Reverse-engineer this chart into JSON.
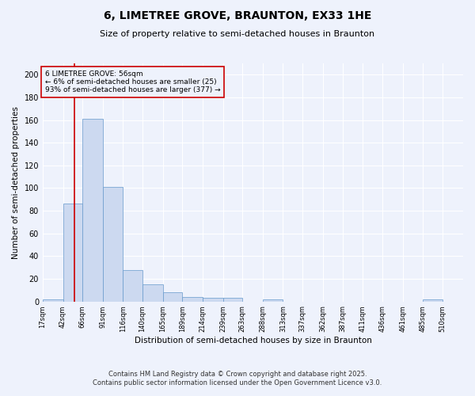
{
  "title": "6, LIMETREE GROVE, BRAUNTON, EX33 1HE",
  "subtitle": "Size of property relative to semi-detached houses in Braunton",
  "xlabel": "Distribution of semi-detached houses by size in Braunton",
  "ylabel": "Number of semi-detached properties",
  "bar_values": [
    2,
    86,
    161,
    101,
    28,
    15,
    8,
    4,
    3,
    3,
    0,
    2,
    0,
    0,
    0,
    0,
    0,
    0,
    0,
    2
  ],
  "bin_labels": [
    "17sqm",
    "42sqm",
    "66sqm",
    "91sqm",
    "116sqm",
    "140sqm",
    "165sqm",
    "189sqm",
    "214sqm",
    "239sqm",
    "263sqm",
    "288sqm",
    "313sqm",
    "337sqm",
    "362sqm",
    "387sqm",
    "411sqm",
    "436sqm",
    "461sqm",
    "485sqm",
    "510sqm"
  ],
  "bin_edges": [
    17,
    42,
    66,
    91,
    116,
    140,
    165,
    189,
    214,
    239,
    263,
    288,
    313,
    337,
    362,
    387,
    411,
    436,
    461,
    485,
    510
  ],
  "bar_color": "#ccd9f0",
  "bar_edge_color": "#6699cc",
  "property_line_x": 56,
  "property_line_color": "#cc0000",
  "annotation_title": "6 LIMETREE GROVE: 56sqm",
  "annotation_line1": "← 6% of semi-detached houses are smaller (25)",
  "annotation_line2": "93% of semi-detached houses are larger (377) →",
  "annotation_box_color": "#cc0000",
  "ylim": [
    0,
    210
  ],
  "yticks": [
    0,
    20,
    40,
    60,
    80,
    100,
    120,
    140,
    160,
    180,
    200
  ],
  "footer1": "Contains HM Land Registry data © Crown copyright and database right 2025.",
  "footer2": "Contains public sector information licensed under the Open Government Licence v3.0.",
  "bg_color": "#eef2fc"
}
